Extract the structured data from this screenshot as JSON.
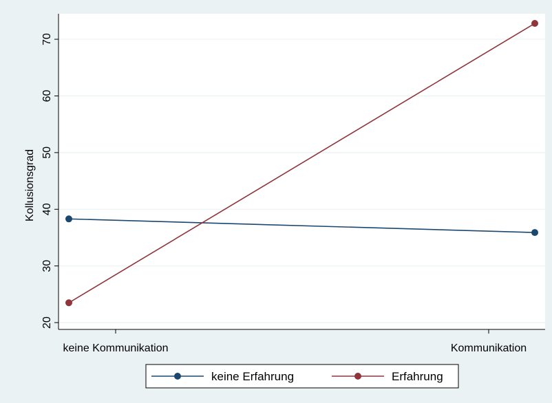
{
  "chart_data": {
    "type": "line",
    "title": "",
    "xlabel": "",
    "ylabel": "Kollusionsgrad",
    "categories": [
      "keine Kommunikation",
      "Kommunikation"
    ],
    "series": [
      {
        "name": "keine Erfahrung",
        "color": "#1a476f",
        "values": [
          38.3,
          35.9
        ]
      },
      {
        "name": "Erfahrung",
        "color": "#90353b",
        "values": [
          23.5,
          72.8
        ]
      }
    ],
    "yticks": [
      20,
      30,
      40,
      50,
      60,
      70
    ],
    "ylim": [
      18.8,
      74.5
    ],
    "grid": true,
    "legend_position": "bottom"
  }
}
